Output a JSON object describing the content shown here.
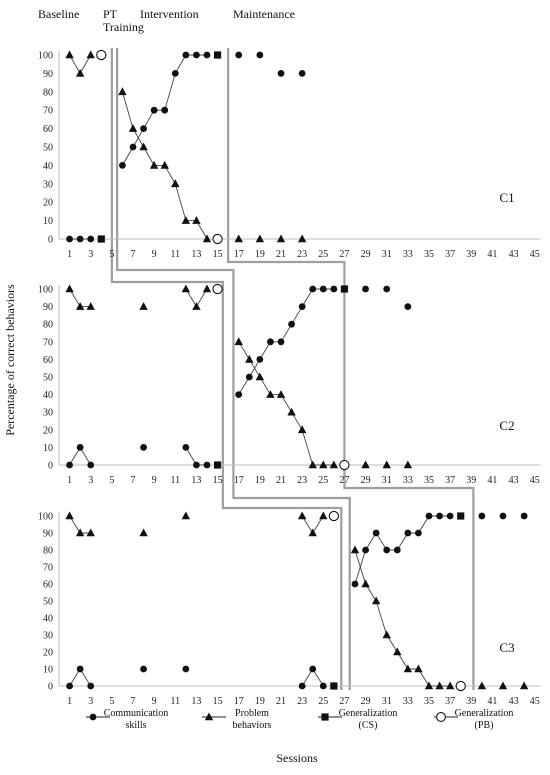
{
  "chart_data": {
    "type": "scatter",
    "ylabel": "Percentage of correct behaviors",
    "xlabel": "Sessions",
    "phase_labels": [
      "Baseline",
      "PT\nTraining",
      "Intervention",
      "Maintenance"
    ],
    "x_ticks": [
      1,
      3,
      5,
      7,
      9,
      11,
      13,
      15,
      17,
      19,
      21,
      23,
      25,
      27,
      29,
      31,
      33,
      35,
      37,
      39,
      41,
      43,
      45
    ],
    "y_ticks": [
      0,
      10,
      20,
      30,
      40,
      50,
      60,
      70,
      80,
      90,
      100
    ],
    "xlim": [
      0,
      45.5
    ],
    "ylim": [
      0,
      100
    ],
    "legend": [
      {
        "name": "Communication skills",
        "marker": "circle"
      },
      {
        "name": "Problem behaviors",
        "marker": "triangle"
      },
      {
        "name": "Generalization (CS)",
        "marker": "square"
      },
      {
        "name": "Generalization (PB)",
        "marker": "open-circle"
      }
    ],
    "panels": [
      {
        "label": "C1",
        "series": [
          {
            "name": "Communication skills",
            "marker": "circle",
            "segments": [
              [
                [
                  1,
                  0
                ],
                [
                  2,
                  0
                ],
                [
                  3,
                  0
                ]
              ],
              [
                [
                  6,
                  40
                ],
                [
                  7,
                  50
                ],
                [
                  8,
                  60
                ],
                [
                  9,
                  70
                ],
                [
                  10,
                  70
                ],
                [
                  11,
                  90
                ],
                [
                  12,
                  100
                ],
                [
                  13,
                  100
                ],
                [
                  14,
                  100
                ]
              ],
              [
                [
                  17,
                  100
                ]
              ],
              [
                [
                  19,
                  100
                ]
              ],
              [
                [
                  21,
                  90
                ]
              ],
              [
                [
                  23,
                  90
                ]
              ]
            ]
          },
          {
            "name": "Problem behaviors",
            "marker": "triangle",
            "segments": [
              [
                [
                  1,
                  100
                ],
                [
                  2,
                  90
                ],
                [
                  3,
                  100
                ]
              ],
              [
                [
                  6,
                  80
                ],
                [
                  7,
                  60
                ],
                [
                  8,
                  50
                ],
                [
                  9,
                  40
                ],
                [
                  10,
                  40
                ],
                [
                  11,
                  30
                ],
                [
                  12,
                  10
                ],
                [
                  13,
                  10
                ],
                [
                  14,
                  0
                ]
              ],
              [
                [
                  17,
                  0
                ]
              ],
              [
                [
                  19,
                  0
                ]
              ],
              [
                [
                  21,
                  0
                ]
              ],
              [
                [
                  23,
                  0
                ]
              ]
            ]
          },
          {
            "name": "Generalization (CS)",
            "marker": "square",
            "points": [
              [
                4,
                0
              ],
              [
                15,
                100
              ]
            ]
          },
          {
            "name": "Generalization (PB)",
            "marker": "open-circle",
            "points": [
              [
                4,
                100
              ],
              [
                15,
                0
              ]
            ]
          }
        ]
      },
      {
        "label": "C2",
        "series": [
          {
            "name": "Communication skills",
            "marker": "circle",
            "segments": [
              [
                [
                  1,
                  0
                ],
                [
                  2,
                  10
                ],
                [
                  3,
                  0
                ]
              ],
              [
                [
                  8,
                  10
                ]
              ],
              [
                [
                  12,
                  10
                ],
                [
                  13,
                  0
                ],
                [
                  14,
                  0
                ]
              ],
              [
                [
                  17,
                  40
                ],
                [
                  18,
                  50
                ],
                [
                  19,
                  60
                ],
                [
                  20,
                  70
                ],
                [
                  21,
                  70
                ],
                [
                  22,
                  80
                ],
                [
                  23,
                  90
                ],
                [
                  24,
                  100
                ],
                [
                  25,
                  100
                ],
                [
                  26,
                  100
                ]
              ],
              [
                [
                  29,
                  100
                ]
              ],
              [
                [
                  31,
                  100
                ]
              ],
              [
                [
                  33,
                  90
                ]
              ]
            ]
          },
          {
            "name": "Problem behaviors",
            "marker": "triangle",
            "segments": [
              [
                [
                  1,
                  100
                ],
                [
                  2,
                  90
                ],
                [
                  3,
                  90
                ]
              ],
              [
                [
                  8,
                  90
                ]
              ],
              [
                [
                  12,
                  100
                ],
                [
                  13,
                  90
                ],
                [
                  14,
                  100
                ]
              ],
              [
                [
                  17,
                  70
                ],
                [
                  18,
                  60
                ],
                [
                  19,
                  50
                ],
                [
                  20,
                  40
                ],
                [
                  21,
                  40
                ],
                [
                  22,
                  30
                ],
                [
                  23,
                  20
                ],
                [
                  24,
                  0
                ],
                [
                  25,
                  0
                ],
                [
                  26,
                  0
                ]
              ],
              [
                [
                  29,
                  0
                ]
              ],
              [
                [
                  31,
                  0
                ]
              ],
              [
                [
                  33,
                  0
                ]
              ]
            ]
          },
          {
            "name": "Generalization (CS)",
            "marker": "square",
            "points": [
              [
                15,
                0
              ],
              [
                27,
                100
              ]
            ]
          },
          {
            "name": "Generalization (PB)",
            "marker": "open-circle",
            "points": [
              [
                15,
                100
              ],
              [
                27,
                0
              ]
            ]
          }
        ]
      },
      {
        "label": "C3",
        "series": [
          {
            "name": "Communication skills",
            "marker": "circle",
            "segments": [
              [
                [
                  1,
                  0
                ],
                [
                  2,
                  10
                ],
                [
                  3,
                  0
                ]
              ],
              [
                [
                  8,
                  10
                ]
              ],
              [
                [
                  12,
                  10
                ]
              ],
              [
                [
                  23,
                  0
                ],
                [
                  24,
                  10
                ],
                [
                  25,
                  0
                ]
              ],
              [
                [
                  28,
                  60
                ],
                [
                  29,
                  80
                ],
                [
                  30,
                  90
                ],
                [
                  31,
                  80
                ],
                [
                  32,
                  80
                ],
                [
                  33,
                  90
                ],
                [
                  34,
                  90
                ],
                [
                  35,
                  100
                ],
                [
                  36,
                  100
                ],
                [
                  37,
                  100
                ]
              ],
              [
                [
                  40,
                  100
                ]
              ],
              [
                [
                  42,
                  100
                ]
              ],
              [
                [
                  44,
                  100
                ]
              ]
            ]
          },
          {
            "name": "Problem behaviors",
            "marker": "triangle",
            "segments": [
              [
                [
                  1,
                  100
                ],
                [
                  2,
                  90
                ],
                [
                  3,
                  90
                ]
              ],
              [
                [
                  8,
                  90
                ]
              ],
              [
                [
                  12,
                  100
                ]
              ],
              [
                [
                  23,
                  100
                ],
                [
                  24,
                  90
                ],
                [
                  25,
                  100
                ]
              ],
              [
                [
                  28,
                  80
                ],
                [
                  29,
                  60
                ],
                [
                  30,
                  50
                ],
                [
                  31,
                  30
                ],
                [
                  32,
                  20
                ],
                [
                  33,
                  10
                ],
                [
                  34,
                  10
                ],
                [
                  35,
                  0
                ],
                [
                  36,
                  0
                ],
                [
                  37,
                  0
                ]
              ],
              [
                [
                  40,
                  0
                ]
              ],
              [
                [
                  42,
                  0
                ]
              ],
              [
                [
                  44,
                  0
                ]
              ]
            ]
          },
          {
            "name": "Generalization (CS)",
            "marker": "square",
            "points": [
              [
                26,
                0
              ],
              [
                38,
                100
              ]
            ]
          },
          {
            "name": "Generalization (PB)",
            "marker": "open-circle",
            "points": [
              [
                26,
                100
              ],
              [
                38,
                0
              ]
            ]
          }
        ]
      }
    ]
  }
}
